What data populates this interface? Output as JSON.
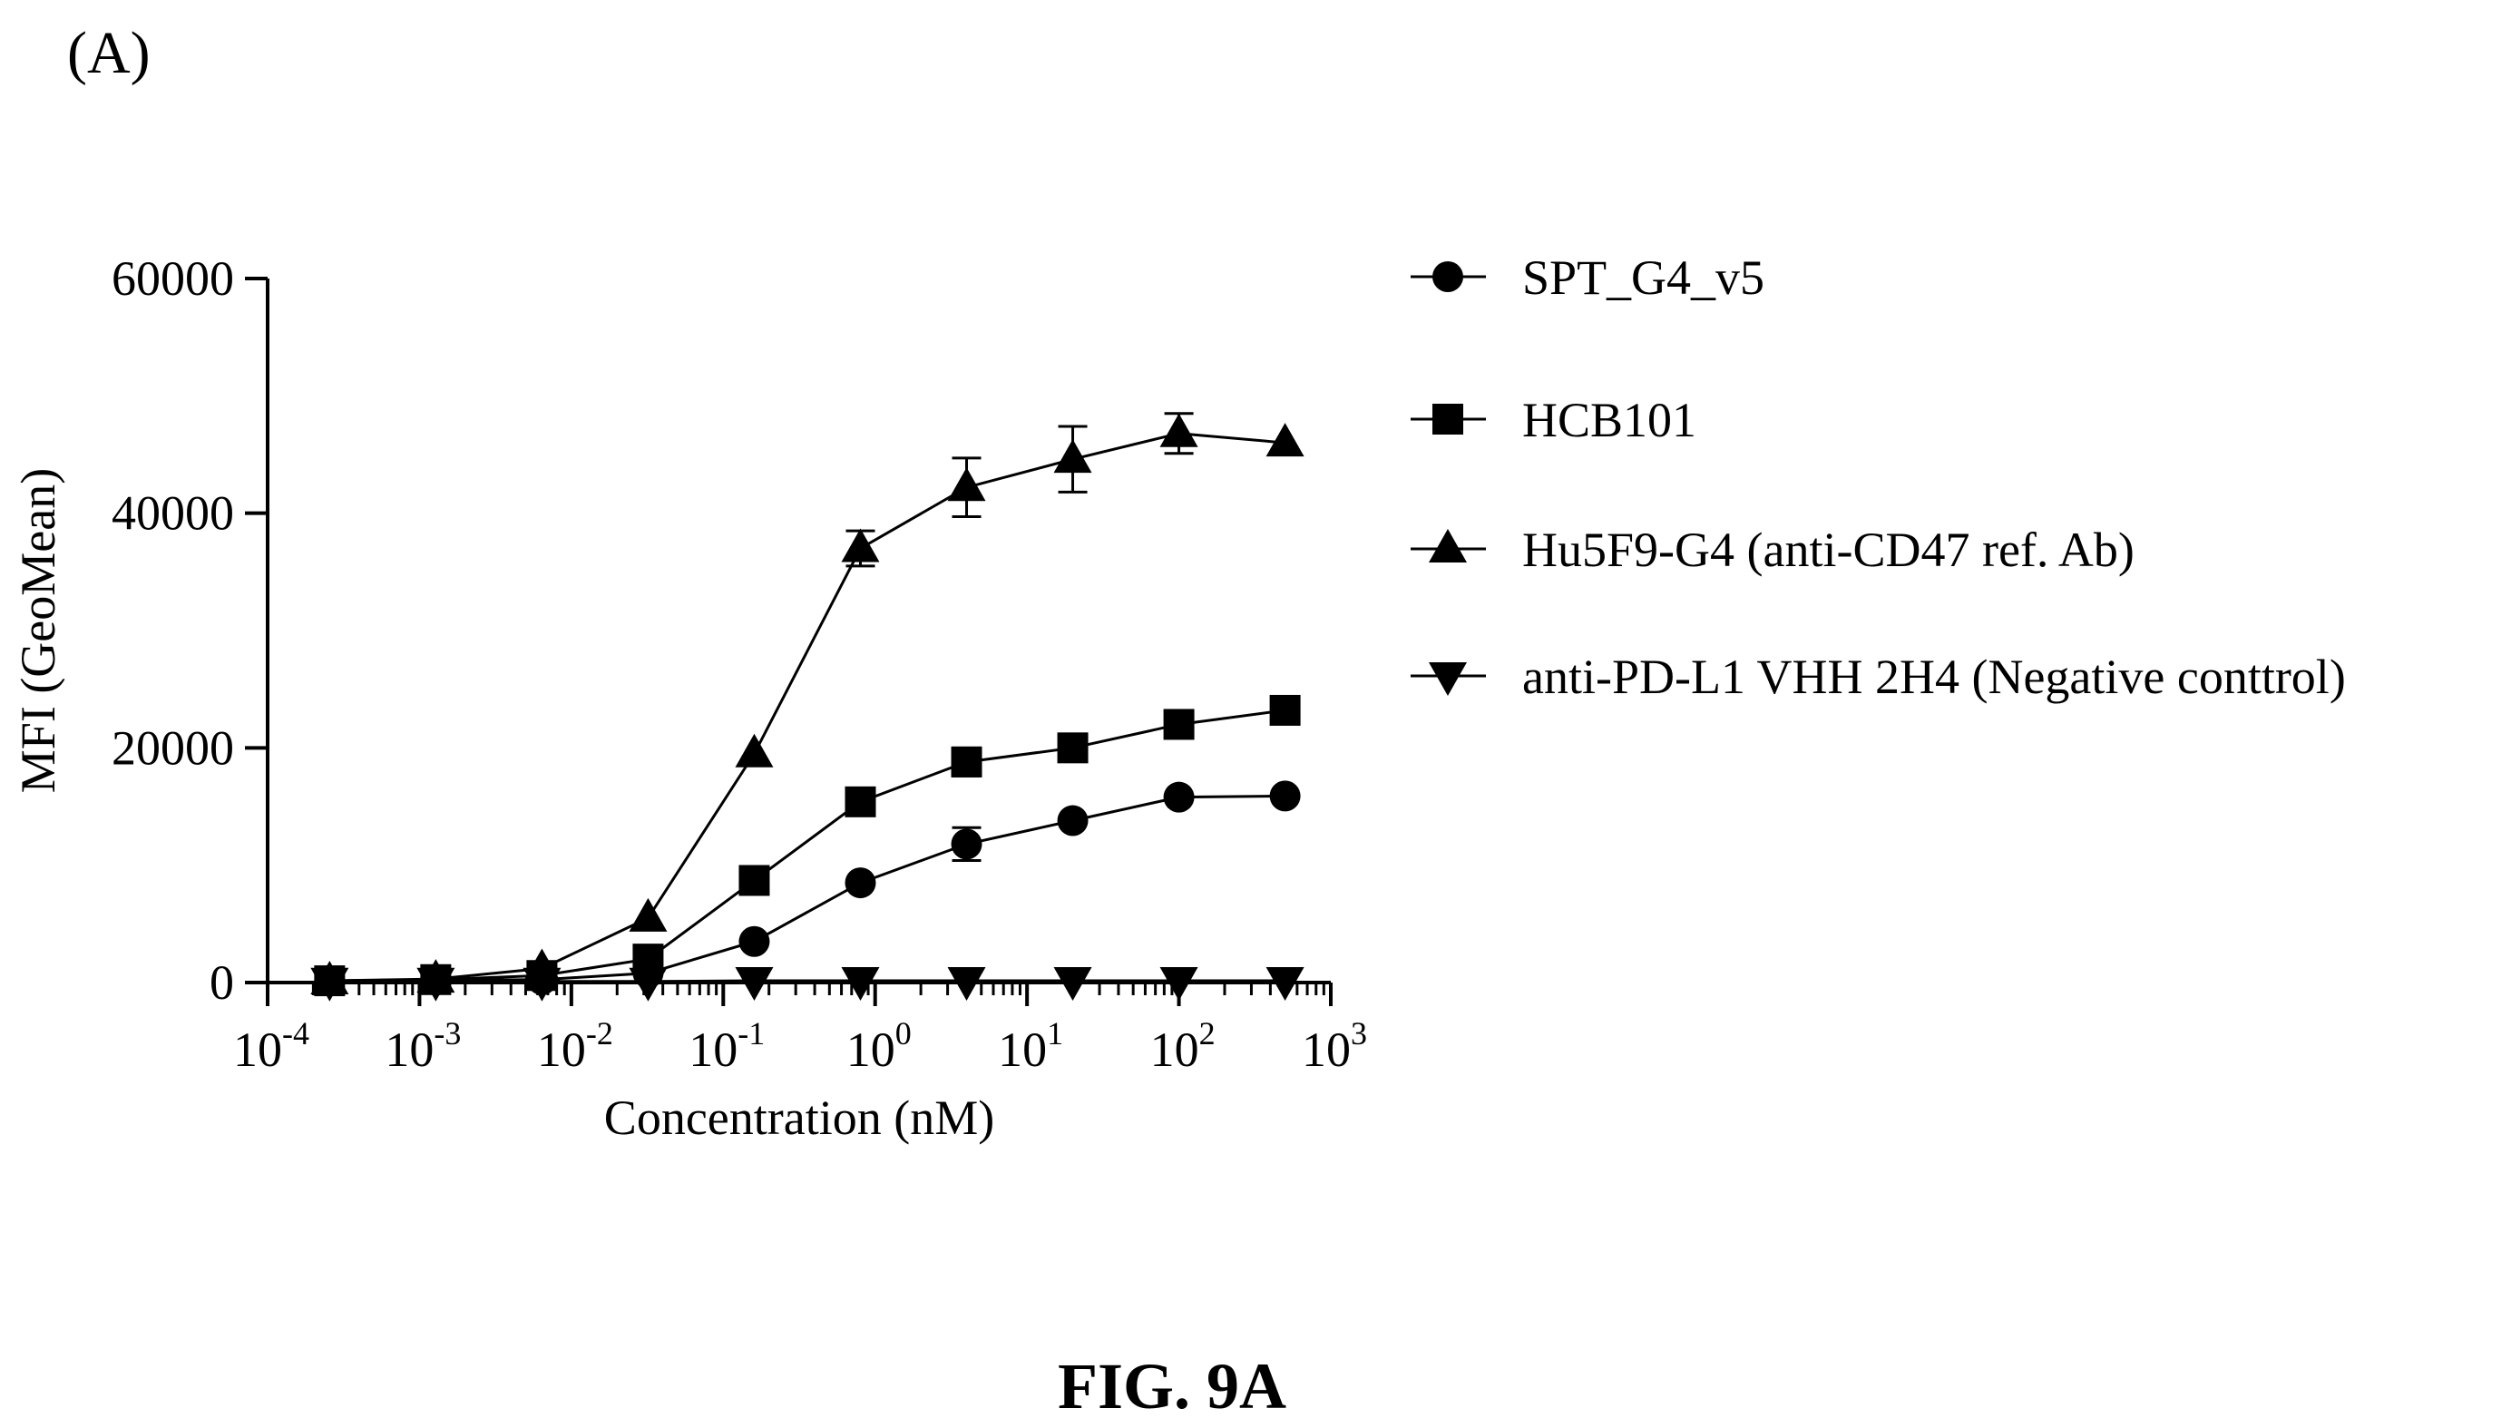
{
  "panel_label": "(A)",
  "figure_caption": "FIG. 9A",
  "chart_data": {
    "type": "line",
    "title": "",
    "xlabel": "Concentration (nM)",
    "ylabel": "MFI (GeoMean)",
    "xscale": "log",
    "xlim": [
      0.0001,
      1000
    ],
    "ylim": [
      0,
      60000
    ],
    "x_ticks": [
      {
        "base": "10",
        "exp": "-4",
        "value": 0.0001
      },
      {
        "base": "10",
        "exp": "-3",
        "value": 0.001
      },
      {
        "base": "10",
        "exp": "-2",
        "value": 0.01
      },
      {
        "base": "10",
        "exp": "-1",
        "value": 0.1
      },
      {
        "base": "10",
        "exp": "0",
        "value": 1
      },
      {
        "base": "10",
        "exp": "1",
        "value": 10
      },
      {
        "base": "10",
        "exp": "2",
        "value": 100
      },
      {
        "base": "10",
        "exp": "3",
        "value": 1000
      }
    ],
    "y_ticks": [
      {
        "label": "0",
        "value": 0
      },
      {
        "label": "20000",
        "value": 20000
      },
      {
        "label": "40000",
        "value": 40000
      },
      {
        "label": "60000",
        "value": 60000
      }
    ],
    "grid": false,
    "legend_position": "right",
    "x": [
      0.000256,
      0.00128,
      0.0064,
      0.032,
      0.16,
      0.8,
      4,
      20,
      100,
      500
    ],
    "series": [
      {
        "name": "SPT_G4_v5",
        "marker": "circle",
        "values": [
          150,
          200,
          250,
          800,
          3500,
          8500,
          11800,
          13800,
          15800,
          15900
        ],
        "errors": [
          0,
          0,
          0,
          0,
          0,
          0,
          1400,
          0,
          0,
          0
        ]
      },
      {
        "name": "HCB101",
        "marker": "square",
        "values": [
          150,
          250,
          600,
          2000,
          8700,
          15400,
          18800,
          20000,
          22000,
          23200
        ],
        "errors": [
          0,
          0,
          0,
          0,
          0,
          0,
          1200,
          0,
          0,
          0
        ]
      },
      {
        "name": "Hu5F9-G4 (anti-CD47 ref. Ab)",
        "marker": "triangle-up",
        "values": [
          150,
          300,
          1200,
          5500,
          19500,
          37000,
          42200,
          44600,
          46800,
          46000
        ],
        "errors": [
          0,
          0,
          0,
          0,
          0,
          1500,
          2500,
          2800,
          1700,
          0
        ]
      },
      {
        "name": "anti-PD-L1 VHH 2H4 (Negative conttrol)",
        "marker": "triangle-down",
        "values": [
          100,
          100,
          100,
          100,
          150,
          150,
          150,
          150,
          150,
          150
        ],
        "errors": [
          0,
          0,
          0,
          0,
          0,
          0,
          0,
          0,
          0,
          0
        ]
      }
    ]
  }
}
